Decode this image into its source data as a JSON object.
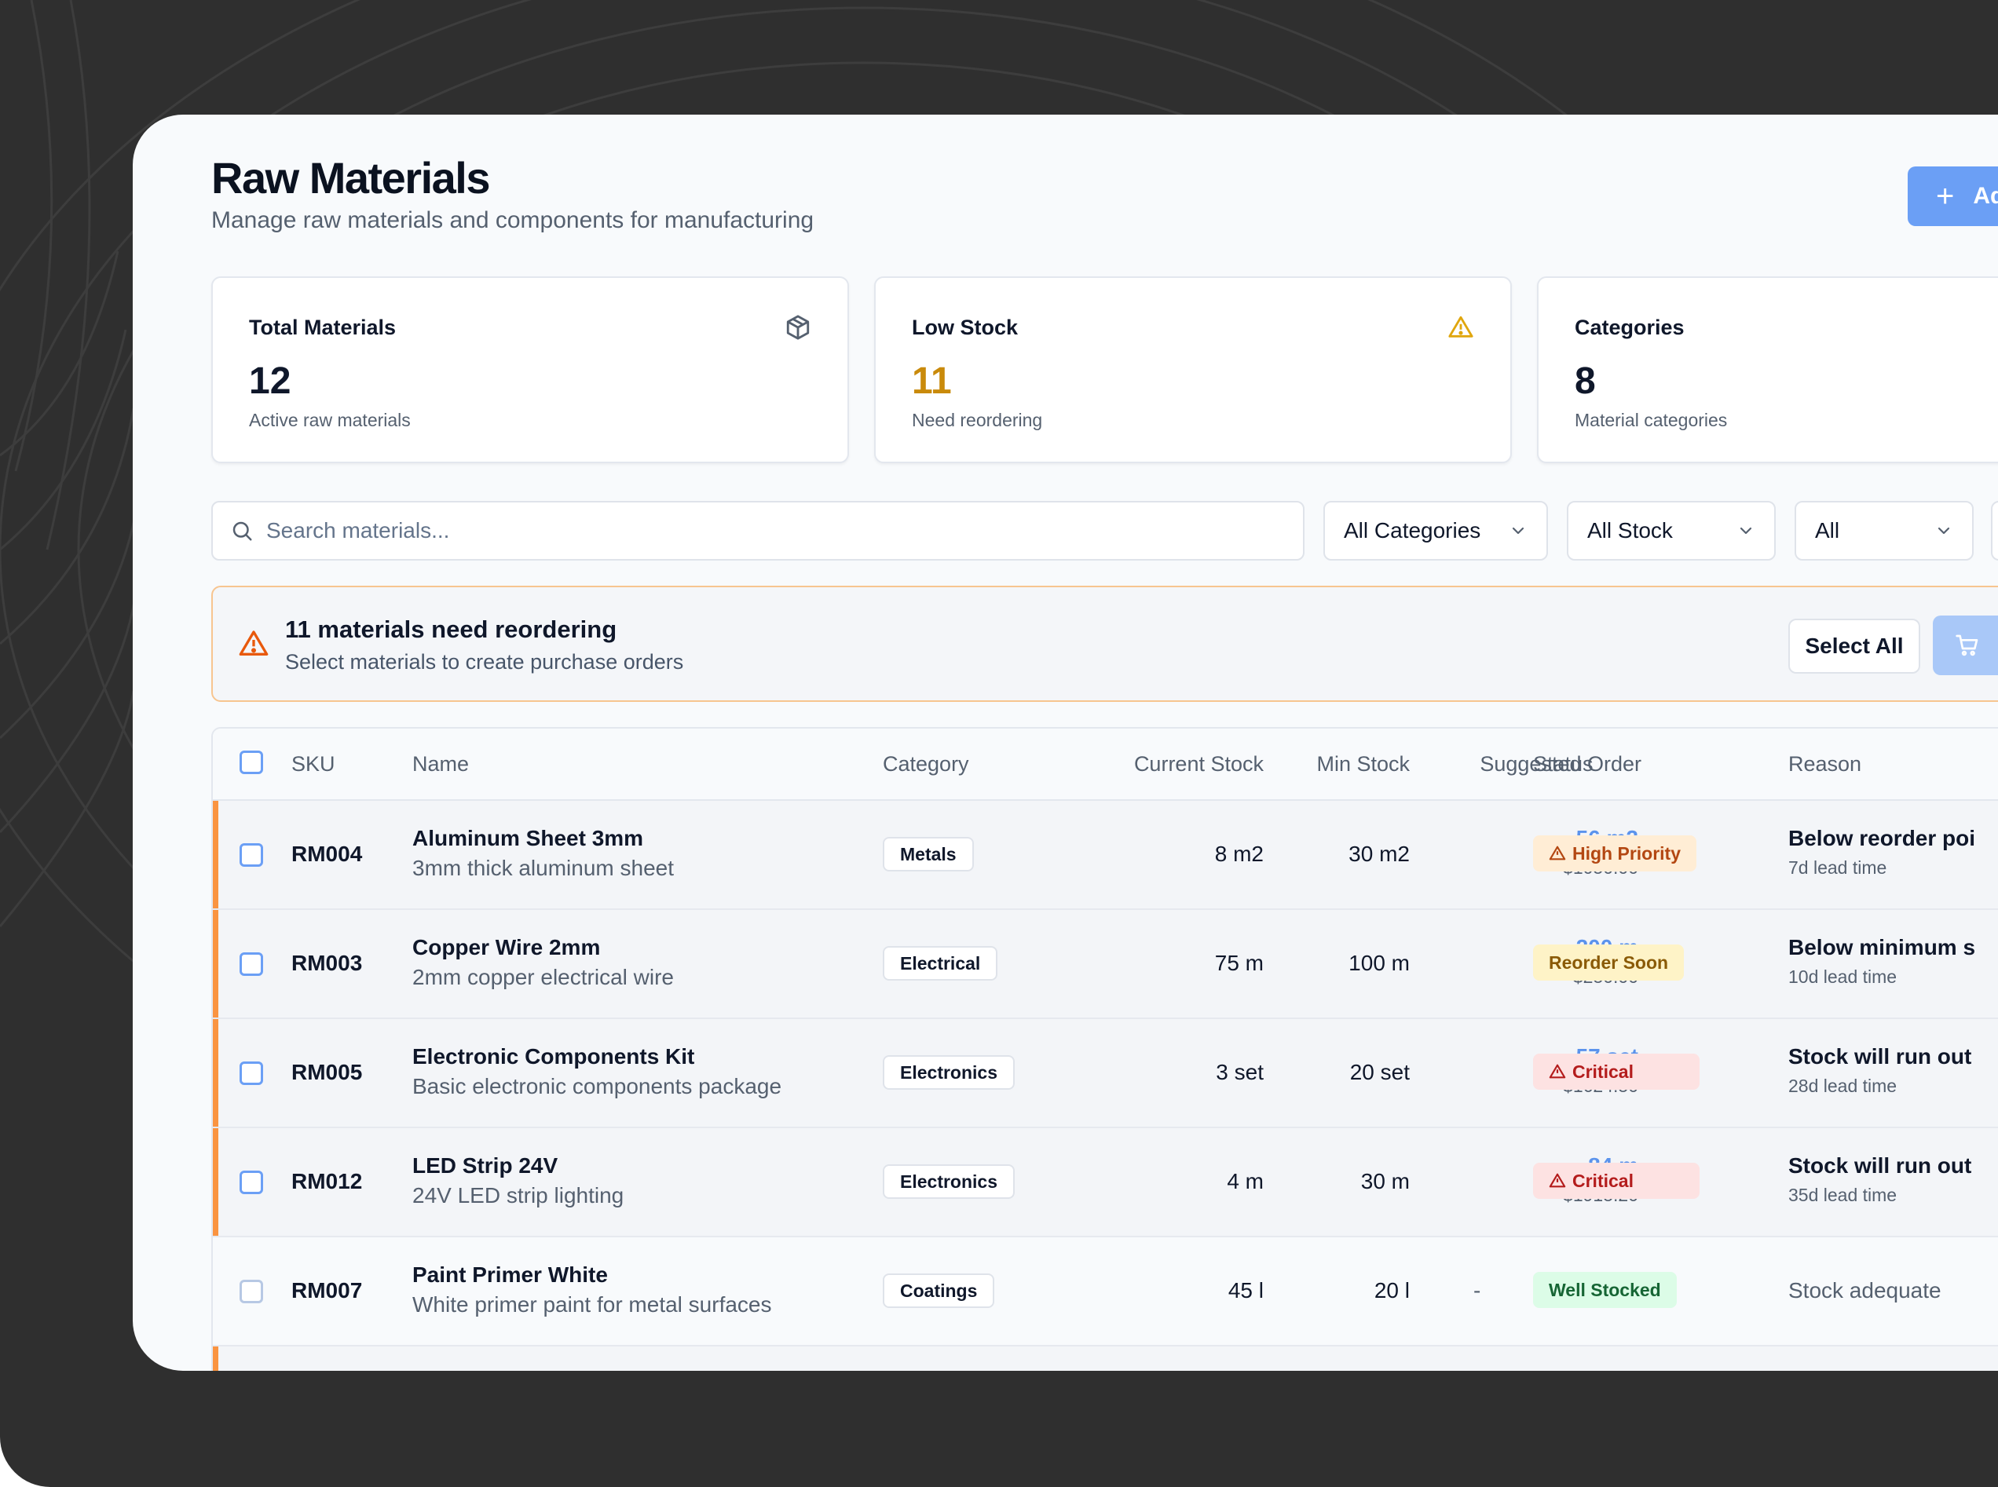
{
  "page": {
    "title": "Raw Materials",
    "subtitle": "Manage raw materials and components for manufacturing",
    "add_button_label": "Ad"
  },
  "stats": [
    {
      "label": "Total Materials",
      "value": "12",
      "desc": "Active raw materials",
      "icon": "package-icon"
    },
    {
      "label": "Low Stock",
      "value": "11",
      "desc": "Need reordering",
      "icon": "warning-triangle-icon",
      "color": "#c98a0b"
    },
    {
      "label": "Categories",
      "value": "8",
      "desc": "Material categories",
      "icon": "layers-icon"
    }
  ],
  "filters": {
    "search_placeholder": "Search materials...",
    "category": "All Categories",
    "stock": "All Stock",
    "status": "All"
  },
  "alert": {
    "title": "11 materials need reordering",
    "desc": "Select materials to create purchase orders",
    "select_all_label": "Select All",
    "accent_color": "#fa9441"
  },
  "table": {
    "headers": {
      "sku": "SKU",
      "name": "Name",
      "category": "Category",
      "current_stock": "Current Stock",
      "min_stock": "Min Stock",
      "suggested_order": "Suggested Order",
      "status": "Status",
      "reason": "Reason"
    },
    "rows": [
      {
        "sku": "RM004",
        "name": "Aluminum Sheet 3mm",
        "desc": "3mm thick aluminum sheet",
        "category": "Metals",
        "current": "8 m2",
        "min": "30 m2",
        "suggest_qty": "56 m2",
        "suggest_cost": "$1050.00",
        "status": "High Priority",
        "reason": "Below reorder poi",
        "lead": "7d lead time"
      },
      {
        "sku": "RM003",
        "name": "Copper Wire 2mm",
        "desc": "2mm copper electrical wire",
        "category": "Electrical",
        "current": "75 m",
        "min": "100 m",
        "suggest_qty": "200 m",
        "suggest_cost": "$250.00",
        "status": "Reorder Soon",
        "reason": "Below minimum s",
        "lead": "10d lead time"
      },
      {
        "sku": "RM005",
        "name": "Electronic Components Kit",
        "desc": "Basic electronic components package",
        "category": "Electronics",
        "current": "3 set",
        "min": "20 set",
        "suggest_qty": "57 set",
        "suggest_cost": "$1624.50",
        "status": "Critical",
        "reason": "Stock will run out",
        "lead": "28d lead time"
      },
      {
        "sku": "RM012",
        "name": "LED Strip 24V",
        "desc": "24V LED strip lighting",
        "category": "Electronics",
        "current": "4 m",
        "min": "30 m",
        "suggest_qty": "84 m",
        "suggest_cost": "$1915.20",
        "status": "Critical",
        "reason": "Stock will run out",
        "lead": "35d lead time"
      },
      {
        "sku": "RM007",
        "name": "Paint Primer White",
        "desc": "White primer paint for metal surfaces",
        "category": "Coatings",
        "current": "45 l",
        "min": "20 l",
        "suggest_qty": "-",
        "status": "Well Stocked",
        "reason": "Stock adequate"
      }
    ]
  },
  "colors": {
    "primary": "#6b9ff5",
    "accent": "#fa9441",
    "critical": "#b41c1c",
    "high": "#b34712",
    "soon": "#8a5a06",
    "ok": "#166534"
  }
}
